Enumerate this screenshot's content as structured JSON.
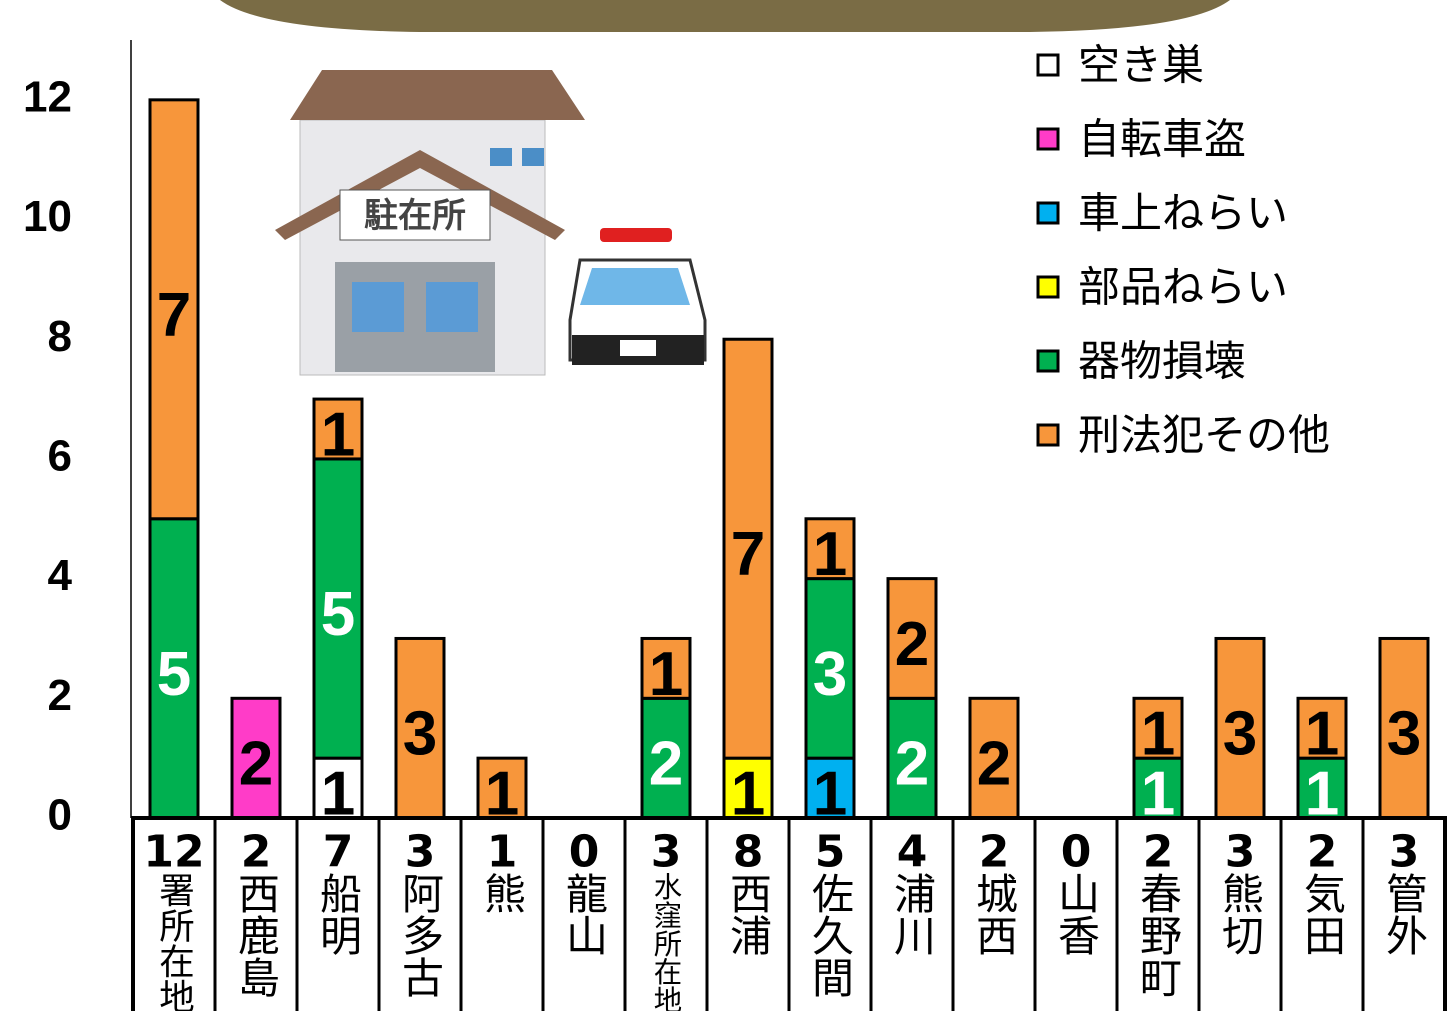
{
  "chart_data": {
    "type": "stacked_bar",
    "categories": [
      "署所在地",
      "西鹿島",
      "船明",
      "阿多古",
      "熊",
      "龍山",
      "水窪所在地",
      "西浦",
      "佐久間",
      "浦川",
      "城西",
      "山香",
      "春野町",
      "熊切",
      "気田",
      "管外"
    ],
    "totals": [
      12,
      2,
      7,
      3,
      1,
      0,
      3,
      8,
      5,
      4,
      2,
      0,
      2,
      3,
      2,
      3
    ],
    "series": [
      {
        "name": "空き巣",
        "color": "#ffffff",
        "label_color": "#000000",
        "values": [
          null,
          null,
          1,
          null,
          null,
          null,
          null,
          null,
          null,
          null,
          null,
          null,
          null,
          null,
          null,
          null
        ]
      },
      {
        "name": "自転車盗",
        "color": "#ff3cc8",
        "label_color": "#000000",
        "values": [
          null,
          2,
          null,
          null,
          null,
          null,
          null,
          null,
          null,
          null,
          null,
          null,
          null,
          null,
          null,
          null
        ]
      },
      {
        "name": "車上ねらい",
        "color": "#00b0f0",
        "label_color": "#000000",
        "values": [
          null,
          null,
          null,
          null,
          null,
          null,
          null,
          null,
          1,
          null,
          null,
          null,
          null,
          null,
          null,
          null
        ]
      },
      {
        "name": "部品ねらい",
        "color": "#ffff00",
        "label_color": "#000000",
        "values": [
          null,
          null,
          null,
          null,
          null,
          null,
          null,
          1,
          null,
          null,
          null,
          null,
          null,
          null,
          null,
          null
        ]
      },
      {
        "name": "器物損壊",
        "color": "#00b050",
        "label_color": "#ffffff",
        "values": [
          5,
          null,
          5,
          null,
          null,
          null,
          2,
          null,
          3,
          2,
          null,
          null,
          1,
          null,
          1,
          null
        ]
      },
      {
        "name": "刑法犯その他",
        "color": "#f7963b",
        "label_color": "#000000",
        "values": [
          7,
          null,
          1,
          3,
          1,
          null,
          1,
          7,
          1,
          2,
          2,
          null,
          1,
          3,
          1,
          3
        ]
      }
    ],
    "ylim": [
      0,
      13
    ],
    "yticks": [
      0,
      2,
      4,
      6,
      8,
      10,
      12
    ]
  },
  "illustration": {
    "sign": "駐在所"
  }
}
